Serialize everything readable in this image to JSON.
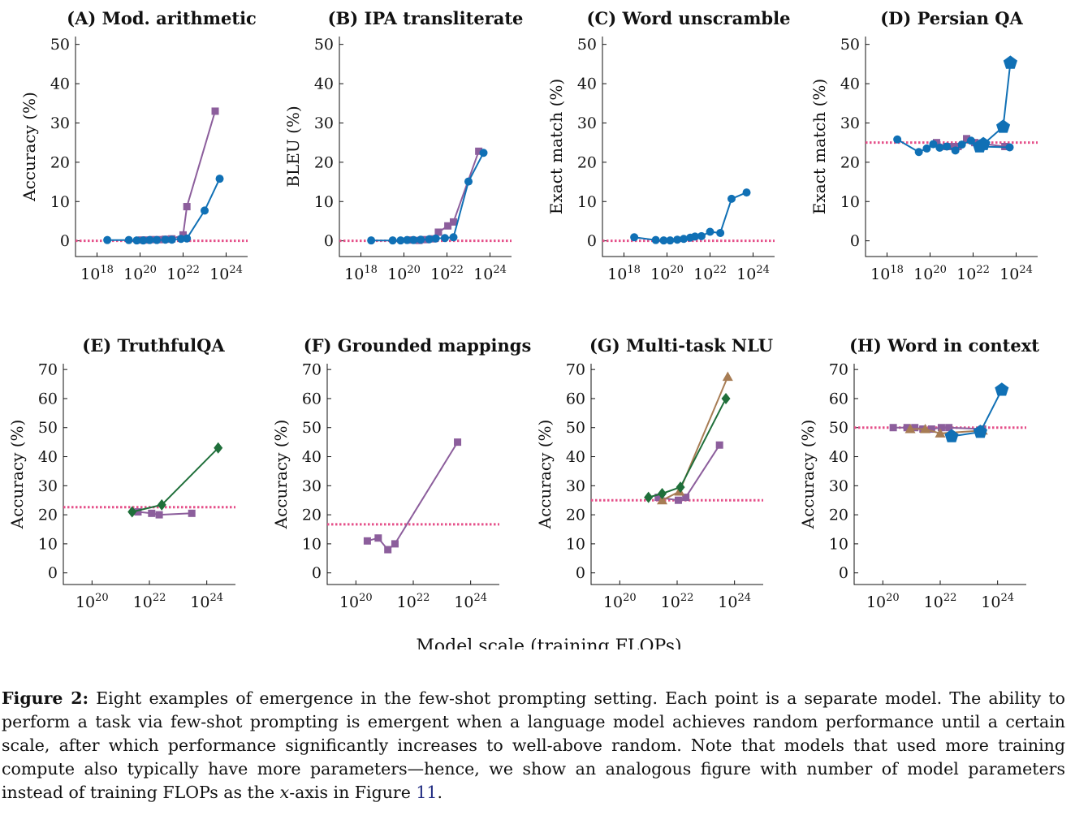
{
  "colors": {
    "gpt3": "#8c5e9c",
    "lamda": "#1070b5",
    "palm": "#1f6f3a",
    "chinchilla": "#a77c54",
    "random": "#e5508a"
  },
  "shared_xlabel": "Model scale (training FLOPs)",
  "caption": {
    "figure_label": "Figure 2:",
    "text_1": " Eight examples of emergence in the few-shot prompting setting. Each point is a separate model. The ability to perform a task via few-shot prompting is emergent when a language model achieves random performance until a certain scale, after which performance significantly increases to well-above random. Note that models that used more training compute also typically have more parameters—hence, we show an analogous figure with number of model parameters instead of training FLOPs as the ",
    "x_var": "x",
    "text_2": "-axis in Figure ",
    "ref": "11",
    "text_3": "."
  },
  "chart_data": [
    {
      "type": "line",
      "title": "(A) Mod. arithmetic",
      "ylabel": "Accuracy (%)",
      "xscale": "log",
      "xlim": [
        1e+17,
        1e+25
      ],
      "ylim": [
        -4,
        52
      ],
      "xticks": [
        {
          "base": "10",
          "exp": "18"
        },
        {
          "base": "10",
          "exp": "20"
        },
        {
          "base": "10",
          "exp": "22"
        },
        {
          "base": "10",
          "exp": "24"
        }
      ],
      "yticks": [
        "0",
        "10",
        "20",
        "30",
        "40",
        "50"
      ],
      "random_baseline": 0,
      "series": [
        {
          "key": "gpt3",
          "marker": "square",
          "x": [
            1.2e+20,
            2e+20,
            4e+20,
            8e+20,
            1.5e+21,
            3e+21,
            1e+22,
            1.5e+22,
            3.1e+23
          ],
          "y": [
            0.2,
            0.2,
            0.3,
            0.3,
            0.4,
            0.5,
            1.5,
            8.7,
            33
          ]
        },
        {
          "key": "lamda",
          "marker": "circle",
          "x": [
            3e+18,
            3e+19,
            7e+19,
            1.4e+20,
            2.8e+20,
            6e+20,
            1.5e+21,
            3e+21,
            8e+21,
            1.5e+22,
            1e+23,
            5e+23
          ],
          "y": [
            0.2,
            0.2,
            0.1,
            0.1,
            0.2,
            0.2,
            0.3,
            0.3,
            0.5,
            0.6,
            7.7,
            15.8
          ]
        }
      ]
    },
    {
      "type": "line",
      "title": "(B) IPA transliterate",
      "ylabel": "BLEU (%)",
      "xscale": "log",
      "xlim": [
        1e+17,
        1e+25
      ],
      "ylim": [
        -4,
        52
      ],
      "xticks": [
        {
          "base": "10",
          "exp": "18"
        },
        {
          "base": "10",
          "exp": "20"
        },
        {
          "base": "10",
          "exp": "22"
        },
        {
          "base": "10",
          "exp": "24"
        }
      ],
      "yticks": [
        "0",
        "10",
        "20",
        "30",
        "40",
        "50"
      ],
      "random_baseline": 0,
      "series": [
        {
          "key": "gpt3",
          "marker": "square",
          "x": [
            2e+20,
            5e+20,
            1e+21,
            2e+21,
            4e+21,
            1.1e+22,
            2e+22,
            3e+23
          ],
          "y": [
            0.2,
            0.1,
            0.3,
            0.5,
            2.2,
            3.8,
            4.8,
            22.8
          ]
        },
        {
          "key": "lamda",
          "marker": "circle",
          "x": [
            3e+18,
            3e+19,
            7e+19,
            1.4e+20,
            2.8e+20,
            6e+20,
            1.5e+21,
            3e+21,
            8e+21,
            2e+22,
            1e+23,
            5e+23
          ],
          "y": [
            0.1,
            0.1,
            0.1,
            0.2,
            0.2,
            0.3,
            0.4,
            0.6,
            0.7,
            0.9,
            15.1,
            22.4
          ]
        }
      ]
    },
    {
      "type": "line",
      "title": "(C) Word unscramble",
      "ylabel": "Exact match (%)",
      "xscale": "log",
      "xlim": [
        1e+17,
        1e+25
      ],
      "ylim": [
        -4,
        52
      ],
      "xticks": [
        {
          "base": "10",
          "exp": "18"
        },
        {
          "base": "10",
          "exp": "20"
        },
        {
          "base": "10",
          "exp": "22"
        },
        {
          "base": "10",
          "exp": "24"
        }
      ],
      "yticks": [
        "0",
        "10",
        "20",
        "30",
        "40",
        "50"
      ],
      "random_baseline": 0,
      "series": [
        {
          "key": "lamda",
          "marker": "circle",
          "x": [
            3e+18,
            3e+19,
            7e+19,
            1.4e+20,
            3e+20,
            6e+20,
            1.2e+21,
            2e+21,
            4e+21,
            1e+22,
            3e+22,
            1e+23,
            5e+23
          ],
          "y": [
            0.9,
            0.2,
            0.1,
            0.1,
            0.3,
            0.5,
            0.8,
            1.1,
            1.2,
            2.3,
            2.0,
            10.7,
            12.3
          ]
        }
      ]
    },
    {
      "type": "line",
      "title": "(D) Persian QA",
      "ylabel": "Exact match (%)",
      "xscale": "log",
      "xlim": [
        1e+17,
        1e+25
      ],
      "ylim": [
        -4,
        52
      ],
      "xticks": [
        {
          "base": "10",
          "exp": "18"
        },
        {
          "base": "10",
          "exp": "20"
        },
        {
          "base": "10",
          "exp": "22"
        },
        {
          "base": "10",
          "exp": "24"
        }
      ],
      "yticks": [
        "0",
        "10",
        "20",
        "30",
        "40",
        "50"
      ],
      "random_baseline": 25,
      "series": [
        {
          "key": "gpt3",
          "marker": "square",
          "x": [
            2e+20,
            6e+20,
            1e+21,
            2e+21,
            5e+21,
            1.2e+22,
            3e+23
          ],
          "y": [
            25,
            24,
            24,
            24,
            26,
            25,
            24
          ]
        },
        {
          "key": "lamda",
          "marker": "circle",
          "x": [
            3e+18,
            3e+19,
            7e+19,
            1.4e+20,
            2.8e+20,
            6e+20,
            1.5e+21,
            3e+21,
            8e+21,
            2e+22,
            5e+23
          ],
          "y": [
            25.8,
            22.6,
            23.5,
            24.6,
            23.7,
            24,
            23,
            24.5,
            25.5,
            24,
            23.8
          ]
        },
        {
          "key": "lamda",
          "marker": "pentagon",
          "x": [
            2e+22,
            3e+22,
            2.5e+23,
            5.4e+23
          ],
          "y": [
            24,
            24.6,
            29,
            45.3
          ]
        }
      ]
    },
    {
      "type": "line",
      "title": "(E) TruthfulQA",
      "ylabel": "Accuracy (%)",
      "xscale": "log",
      "xlim": [
        1e+19,
        1e+25
      ],
      "ylim": [
        -4,
        72
      ],
      "xticks": [
        {
          "base": "10",
          "exp": "20"
        },
        {
          "base": "10",
          "exp": "22"
        },
        {
          "base": "10",
          "exp": "24"
        }
      ],
      "yticks": [
        "0",
        "10",
        "20",
        "30",
        "40",
        "50",
        "60",
        "70"
      ],
      "random_baseline": 22.6,
      "series": [
        {
          "key": "gpt3",
          "marker": "square",
          "x": [
            4e+21,
            1.2e+22,
            2.2e+22,
            3e+23
          ],
          "y": [
            21,
            20.5,
            20,
            20.5
          ]
        },
        {
          "key": "palm",
          "marker": "diamond",
          "x": [
            2.5e+21,
            2.7e+22,
            2.5e+24
          ],
          "y": [
            21,
            23.4,
            43
          ]
        }
      ]
    },
    {
      "type": "line",
      "title": "(F) Grounded mappings",
      "ylabel": "Accuracy (%)",
      "xscale": "log",
      "xlim": [
        1e+19,
        1e+25
      ],
      "ylim": [
        -4,
        72
      ],
      "xticks": [
        {
          "base": "10",
          "exp": "20"
        },
        {
          "base": "10",
          "exp": "22"
        },
        {
          "base": "10",
          "exp": "24"
        }
      ],
      "yticks": [
        "0",
        "10",
        "20",
        "30",
        "40",
        "50",
        "60",
        "70"
      ],
      "random_baseline": 16.7,
      "series": [
        {
          "key": "gpt3",
          "marker": "square",
          "x": [
            2.5e+20,
            6e+20,
            1.3e+21,
            2.3e+21,
            3.5e+23
          ],
          "y": [
            11,
            12,
            8,
            10,
            45
          ]
        }
      ]
    },
    {
      "type": "line",
      "title": "(G) Multi-task NLU",
      "ylabel": "Accuracy (%)",
      "xscale": "log",
      "xlim": [
        1e+19,
        1e+25
      ],
      "ylim": [
        -4,
        72
      ],
      "xticks": [
        {
          "base": "10",
          "exp": "20"
        },
        {
          "base": "10",
          "exp": "22"
        },
        {
          "base": "10",
          "exp": "24"
        }
      ],
      "yticks": [
        "0",
        "10",
        "20",
        "30",
        "40",
        "50",
        "60",
        "70"
      ],
      "random_baseline": 25,
      "series": [
        {
          "key": "gpt3",
          "marker": "square",
          "x": [
            2.2e+21,
            1.1e+22,
            2e+22,
            3e+23
          ],
          "y": [
            26,
            25,
            26,
            44
          ]
        },
        {
          "key": "chinchilla",
          "marker": "triangle",
          "x": [
            3e+21,
            1.2e+22,
            5.8e+23
          ],
          "y": [
            25,
            28,
            67.5
          ]
        },
        {
          "key": "palm",
          "marker": "diamond",
          "x": [
            1e+21,
            3e+21,
            1.3e+22,
            5e+23
          ],
          "y": [
            26,
            27.3,
            29.5,
            60
          ]
        }
      ]
    },
    {
      "type": "line",
      "title": "(H) Word in context",
      "ylabel": "Accuracy (%)",
      "xscale": "log",
      "xlim": [
        1e+19,
        1e+25
      ],
      "ylim": [
        -4,
        72
      ],
      "xticks": [
        {
          "base": "10",
          "exp": "20"
        },
        {
          "base": "10",
          "exp": "22"
        },
        {
          "base": "10",
          "exp": "24"
        }
      ],
      "yticks": [
        "0",
        "10",
        "20",
        "30",
        "40",
        "50",
        "60",
        "70"
      ],
      "random_baseline": 50,
      "series": [
        {
          "key": "gpt3",
          "marker": "square",
          "x": [
            2.3e+20,
            7e+20,
            1.3e+21,
            2.5e+21,
            5e+21,
            1.1e+22,
            2e+22,
            3e+23
          ],
          "y": [
            50,
            50,
            50,
            49.5,
            49.5,
            50,
            50,
            49.5
          ]
        },
        {
          "key": "chinchilla",
          "marker": "triangle",
          "x": [
            9e+20,
            3e+21,
            1e+22,
            3e+23
          ],
          "y": [
            49.5,
            49.5,
            48,
            49
          ]
        },
        {
          "key": "lamda",
          "marker": "pentagon",
          "x": [
            2.5e+22,
            2.5e+23,
            1.4e+24
          ],
          "y": [
            47,
            48.5,
            63
          ]
        }
      ]
    }
  ]
}
